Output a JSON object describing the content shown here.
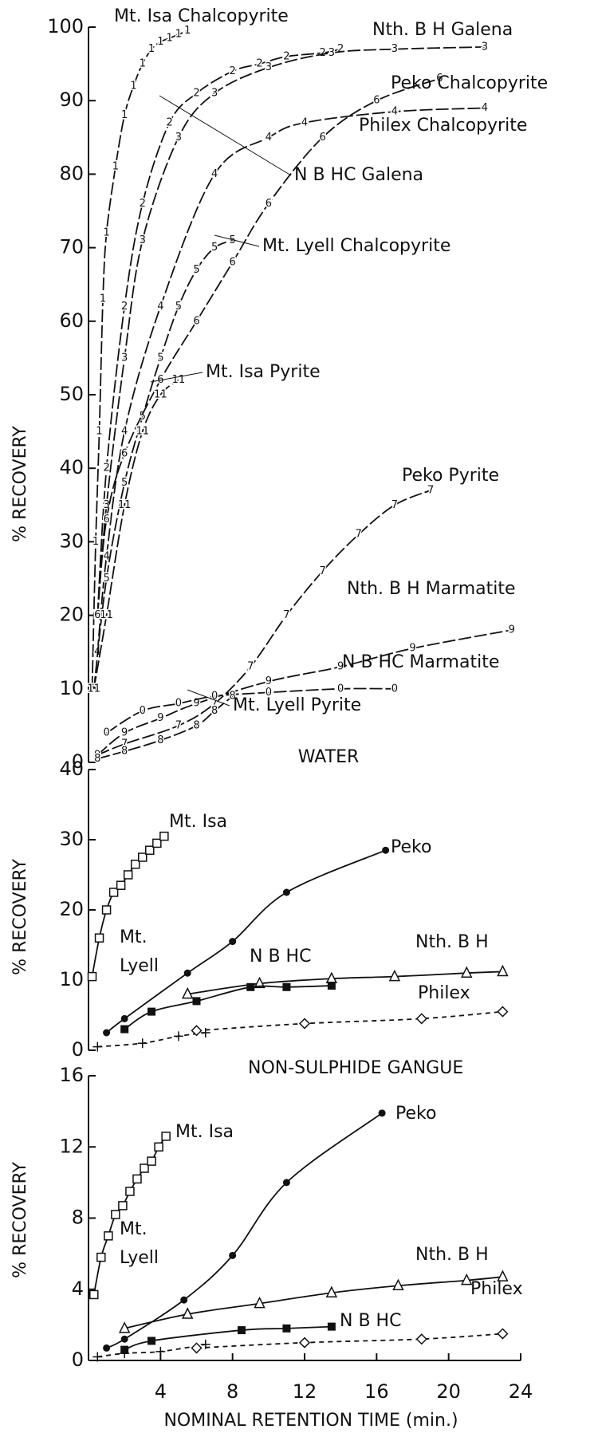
{
  "chart_data": [
    {
      "type": "line",
      "ylabel": "% RECOVERY",
      "xlim": [
        0,
        24
      ],
      "ylim": [
        0,
        100
      ],
      "yticks": [
        0,
        10,
        20,
        30,
        40,
        50,
        60,
        70,
        80,
        90,
        100
      ],
      "series": [
        {
          "name": "Mt. Isa Chalcopyrite",
          "marker": "1",
          "x": [
            0.2,
            0.4,
            0.6,
            0.8,
            1.0,
            1.5,
            2.0,
            2.5,
            3.0,
            3.5,
            4.0,
            4.5,
            5.0,
            5.5
          ],
          "values": [
            10,
            30,
            45,
            63,
            72,
            81,
            88,
            92,
            95,
            97,
            98,
            98.5,
            99,
            99.5
          ]
        },
        {
          "name": "Nth. B H  Galena",
          "marker": "2",
          "x": [
            0.5,
            1.0,
            2.0,
            3.0,
            4.5,
            6.0,
            8.0,
            9.5,
            11.0,
            13.0,
            14.0
          ],
          "values": [
            20,
            40,
            62,
            76,
            87,
            91,
            94,
            95,
            96,
            96.5,
            97
          ]
        },
        {
          "name": "N B HC  Galena",
          "marker": "3",
          "x": [
            0.5,
            1.0,
            2.0,
            3.0,
            5.0,
            7.0,
            10.0,
            13.5,
            17.0,
            22.0
          ],
          "values": [
            20,
            35,
            55,
            71,
            85,
            91,
            94.5,
            96.5,
            97,
            97.3
          ]
        },
        {
          "name": "Philex  Chalcopyrite",
          "marker": "4",
          "x": [
            0.5,
            1.0,
            2.0,
            4.0,
            7.0,
            10.0,
            12.0,
            17.0,
            22.0
          ],
          "values": [
            15,
            28,
            45,
            62,
            80,
            85,
            87,
            88.5,
            89
          ]
        },
        {
          "name": "Mt. Lyell  Chalcopyrite",
          "marker": "5",
          "x": [
            0.3,
            1.0,
            2.0,
            3.0,
            4.0,
            5.0,
            6.0,
            7.0,
            8.0
          ],
          "values": [
            10,
            25,
            38,
            47,
            55,
            62,
            67,
            70,
            71
          ]
        },
        {
          "name": "Peko  Chalcopyrite",
          "marker": "6",
          "x": [
            0.5,
            1.0,
            2.0,
            4.0,
            6.0,
            8.0,
            10.0,
            13.0,
            16.0,
            19.5
          ],
          "values": [
            20,
            33,
            42,
            52,
            60,
            68,
            76,
            85,
            90,
            93
          ]
        },
        {
          "name": "Mt. Isa  Pyrite",
          "marker": "11",
          "x": [
            0.3,
            1.0,
            2.0,
            3.0,
            4.0,
            5.0
          ],
          "values": [
            10,
            20,
            35,
            45,
            50,
            52
          ]
        },
        {
          "name": "Peko  Pyrite",
          "marker": "7",
          "x": [
            0.5,
            2.0,
            5.0,
            7.0,
            9.0,
            11.0,
            13.0,
            15.0,
            17.0,
            19.0
          ],
          "values": [
            1,
            2.5,
            5,
            8,
            13,
            20,
            26,
            31,
            35,
            37
          ]
        },
        {
          "name": "Nth.  B H  Marmatite",
          "marker": "9",
          "x": [
            0.5,
            2.0,
            4.0,
            6.0,
            10.0,
            14.0,
            18.0,
            23.5
          ],
          "values": [
            1,
            4,
            6,
            8,
            11,
            13,
            15.5,
            18
          ]
        },
        {
          "name": "N B HC  Marmatite",
          "marker": "0",
          "x": [
            1.0,
            3.0,
            5.0,
            7.0,
            10.0,
            14.0,
            17.0
          ],
          "values": [
            4,
            7,
            8,
            9,
            9.5,
            10,
            10
          ]
        },
        {
          "name": "Mt. Lyell  Pyrite",
          "marker": "8",
          "x": [
            0.5,
            2.0,
            4.0,
            6.0,
            7.0,
            8.0
          ],
          "values": [
            0.5,
            1.5,
            3,
            5,
            7,
            9
          ]
        }
      ]
    },
    {
      "type": "line",
      "title": "WATER",
      "ylabel": "% RECOVERY",
      "xlim": [
        0,
        24
      ],
      "ylim": [
        0,
        40
      ],
      "yticks": [
        0,
        10,
        20,
        30,
        40
      ],
      "series": [
        {
          "name": "Mt. Isa",
          "marker": "square",
          "x": [
            0.2,
            0.6,
            1.0,
            1.4,
            1.8,
            2.2,
            2.6,
            3.0,
            3.4,
            3.8,
            4.2
          ],
          "values": [
            10.5,
            16,
            20,
            22.5,
            23.5,
            25,
            26.5,
            27.5,
            28.5,
            29.5,
            30.5
          ]
        },
        {
          "name": "Peko",
          "marker": "circle",
          "x": [
            1.0,
            2.0,
            5.5,
            8.0,
            11.0,
            16.5
          ],
          "values": [
            2.5,
            4.5,
            11,
            15.5,
            22.5,
            28.5
          ]
        },
        {
          "name": "Nth. B H",
          "marker": "triangle",
          "x": [
            5.5,
            9.5,
            13.5,
            17.0,
            21.0,
            23.0
          ],
          "values": [
            8,
            9.5,
            10.2,
            10.5,
            11,
            11.2
          ]
        },
        {
          "name": "N B HC",
          "marker": "filled-square",
          "x": [
            2.0,
            3.5,
            6.0,
            9.0,
            11.0,
            13.5
          ],
          "values": [
            3,
            5.5,
            7,
            9,
            9,
            9.2
          ]
        },
        {
          "name": "Mt. Lyell",
          "marker": "plus",
          "dashed": true,
          "x": [
            0.5,
            3.0,
            5.0,
            6.5
          ],
          "values": [
            0.5,
            1,
            2,
            2.5
          ]
        },
        {
          "name": "Philex",
          "marker": "diamond",
          "dashed": true,
          "x": [
            6.0,
            12.0,
            18.5,
            23.0
          ],
          "values": [
            2.8,
            3.8,
            4.5,
            5.5
          ]
        }
      ]
    },
    {
      "type": "line",
      "title": "NON-SULPHIDE  GANGUE",
      "ylabel": "% RECOVERY",
      "xlabel": "NOMINAL  RETENTION  TIME   (min.)",
      "xlim": [
        0,
        24
      ],
      "xticks": [
        4,
        8,
        12,
        16,
        20,
        24
      ],
      "ylim": [
        0,
        16
      ],
      "yticks": [
        0,
        4,
        8,
        12,
        16
      ],
      "series": [
        {
          "name": "Mt. Isa",
          "marker": "square",
          "x": [
            0.3,
            0.7,
            1.1,
            1.5,
            1.9,
            2.3,
            2.7,
            3.1,
            3.5,
            3.9,
            4.3
          ],
          "values": [
            3.7,
            5.8,
            7,
            8.2,
            8.7,
            9.5,
            10.2,
            10.8,
            11.2,
            12,
            12.6
          ]
        },
        {
          "name": "Peko",
          "marker": "circle",
          "x": [
            1.0,
            2.0,
            5.3,
            8.0,
            11.0,
            16.3
          ],
          "values": [
            0.7,
            1.2,
            3.4,
            5.9,
            10,
            13.9
          ]
        },
        {
          "name": "Nth. B H",
          "marker": "triangle",
          "x": [
            2.0,
            5.5,
            9.5,
            13.5,
            17.2,
            21.0,
            23.0
          ],
          "values": [
            1.8,
            2.6,
            3.2,
            3.8,
            4.2,
            4.5,
            4.7
          ]
        },
        {
          "name": "N B HC",
          "marker": "filled-square",
          "x": [
            2.0,
            3.5,
            8.5,
            11.0,
            13.5
          ],
          "values": [
            0.6,
            1.1,
            1.7,
            1.8,
            1.9
          ]
        },
        {
          "name": "Mt. Lyell",
          "marker": "plus",
          "dashed": true,
          "x": [
            0.5,
            2.0,
            4.0,
            6.5
          ],
          "values": [
            0.2,
            0.4,
            0.5,
            0.9
          ]
        },
        {
          "name": "Philex",
          "marker": "diamond",
          "dashed": true,
          "x": [
            6.0,
            12.0,
            18.5,
            23.0
          ],
          "values": [
            0.7,
            1.0,
            1.2,
            1.5
          ]
        }
      ]
    }
  ]
}
